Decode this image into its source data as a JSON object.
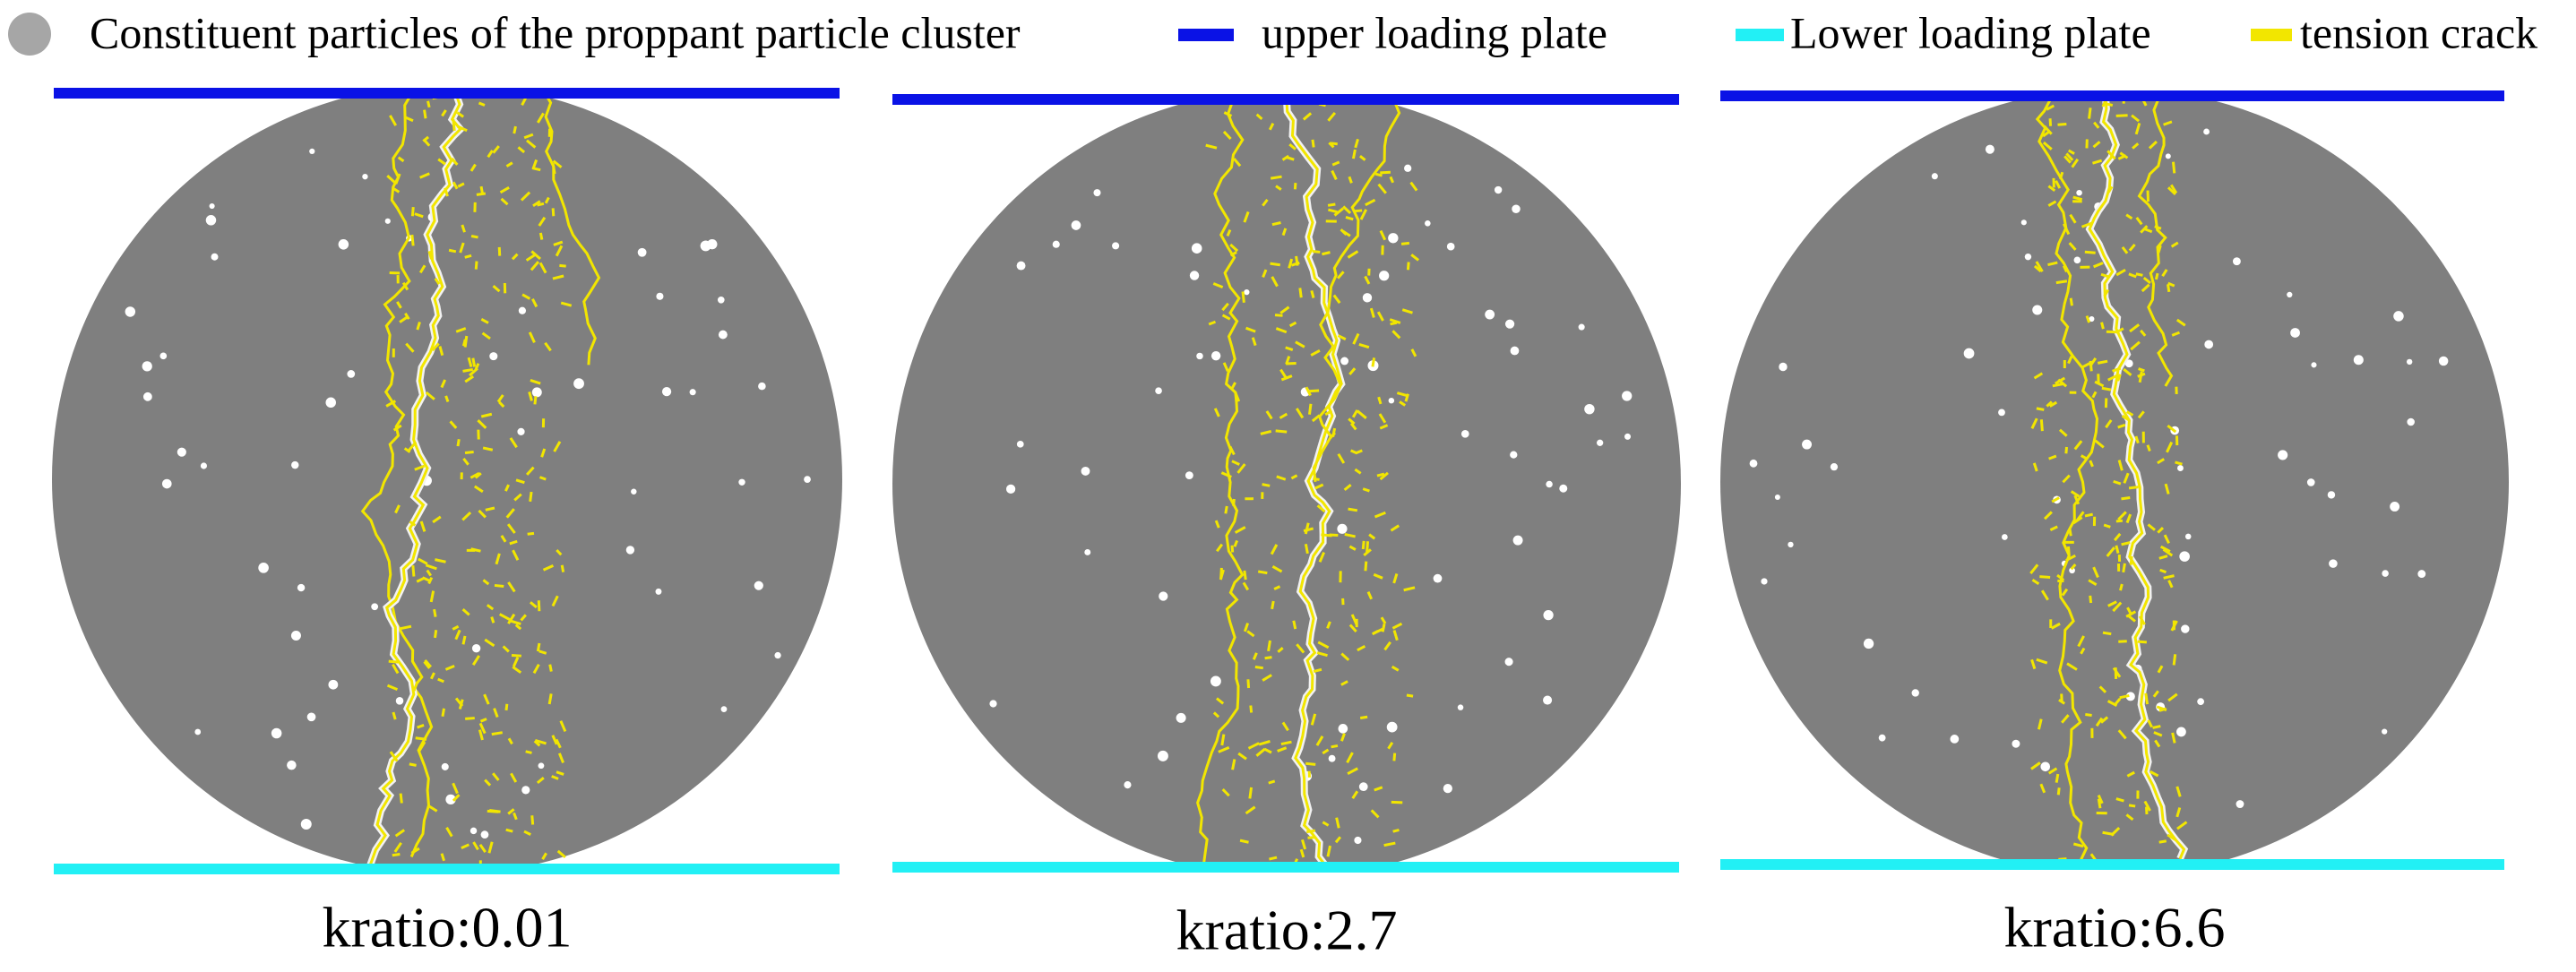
{
  "legend": {
    "items": [
      {
        "label": "Constituent particles of the proppant particle cluster"
      },
      {
        "label": "upper loading plate"
      },
      {
        "label": "Lower loading plate"
      },
      {
        "label": "tension crack"
      }
    ]
  },
  "panels": [
    {
      "label": "kratio:0.01"
    },
    {
      "label": "kratio:2.7"
    },
    {
      "label": "kratio:6.6"
    }
  ]
}
